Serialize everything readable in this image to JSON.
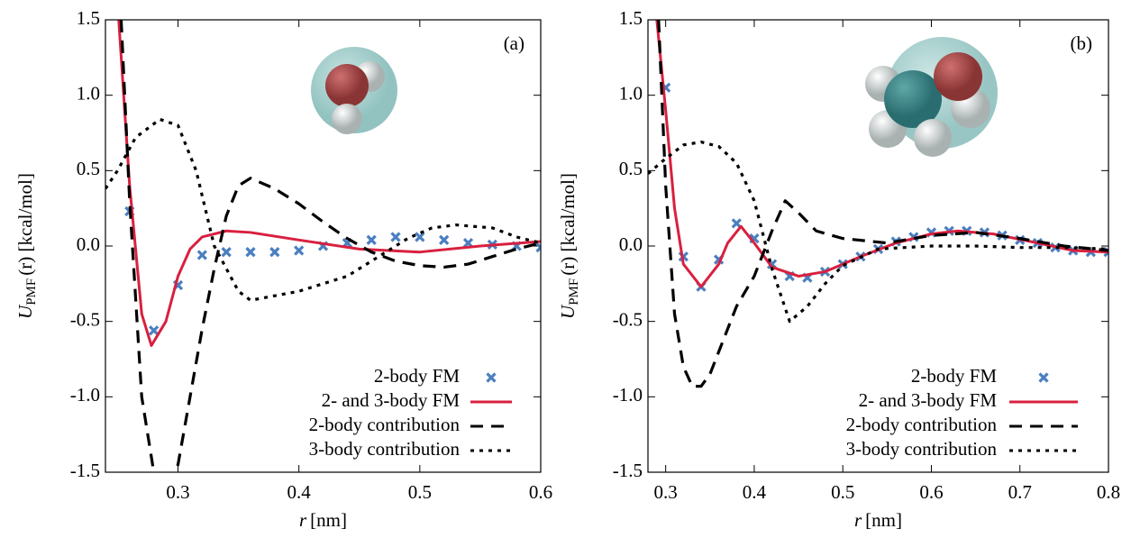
{
  "chart_data": [
    {
      "type": "line",
      "annotation": "(a)",
      "legend": "lower right",
      "xlabel": {
        "symbol": "r",
        "rest": "[nm]"
      },
      "ylabel": {
        "symbol": "U",
        "subscript": "PMF",
        "rest": "(r) [kcal/mol]"
      },
      "xlim": [
        0.24,
        0.6
      ],
      "ylim": [
        -1.5,
        1.5
      ],
      "xticks": [
        0.3,
        0.4,
        0.5,
        0.6
      ],
      "yticks": [
        -1.5,
        {
          "value": -1,
          "label": "-1.0"
        },
        -0.5,
        {
          "value": 0,
          "label": "0.0"
        },
        0.5,
        {
          "value": 1,
          "label": "1.0"
        },
        1.5
      ],
      "series": [
        {
          "name": "2-body FM",
          "color": "#4a7fc0",
          "style": "points",
          "x": [
            0.26,
            0.28,
            0.3,
            0.32,
            0.34,
            0.36,
            0.38,
            0.4,
            0.42,
            0.44,
            0.46,
            0.48,
            0.5,
            0.52,
            0.54,
            0.56,
            0.58,
            0.6
          ],
          "values": [
            0.23,
            -0.56,
            -0.26,
            -0.06,
            -0.04,
            -0.04,
            -0.04,
            -0.03,
            0.0,
            0.02,
            0.04,
            0.06,
            0.06,
            0.04,
            0.02,
            0.01,
            0.0,
            -0.01
          ]
        },
        {
          "name": "2- and 3-body FM",
          "color": "#d9203f",
          "style": "solid",
          "x": [
            0.251,
            0.26,
            0.27,
            0.278,
            0.29,
            0.3,
            0.31,
            0.32,
            0.34,
            0.36,
            0.4,
            0.45,
            0.5,
            0.55,
            0.6
          ],
          "values": [
            1.5,
            0.4,
            -0.45,
            -0.66,
            -0.5,
            -0.2,
            -0.02,
            0.06,
            0.1,
            0.09,
            0.04,
            -0.02,
            -0.04,
            0.0,
            0.03
          ]
        },
        {
          "name": "2-body contribution",
          "color": "#000000",
          "style": "dashed",
          "x": [
            0.253,
            0.26,
            0.27,
            0.28,
            0.29,
            0.3,
            0.31,
            0.32,
            0.33,
            0.34,
            0.35,
            0.36,
            0.38,
            0.4,
            0.42,
            0.44,
            0.46,
            0.48,
            0.5,
            0.52,
            0.54,
            0.56,
            0.58,
            0.6
          ],
          "values": [
            1.5,
            0.3,
            -1.0,
            -1.5,
            -1.6,
            -1.45,
            -1.0,
            -0.55,
            -0.15,
            0.2,
            0.4,
            0.45,
            0.38,
            0.28,
            0.16,
            0.05,
            -0.04,
            -0.1,
            -0.13,
            -0.14,
            -0.12,
            -0.07,
            -0.02,
            0.02
          ]
        },
        {
          "name": "3-body contribution",
          "color": "#000000",
          "style": "dotted",
          "x": [
            0.24,
            0.25,
            0.265,
            0.285,
            0.3,
            0.315,
            0.33,
            0.35,
            0.36,
            0.4,
            0.44,
            0.47,
            0.49,
            0.51,
            0.53,
            0.56,
            0.58,
            0.6
          ],
          "values": [
            0.38,
            0.5,
            0.72,
            0.84,
            0.8,
            0.5,
            0.0,
            -0.3,
            -0.36,
            -0.3,
            -0.2,
            -0.05,
            0.05,
            0.12,
            0.14,
            0.12,
            0.06,
            0.02
          ]
        }
      ]
    },
    {
      "type": "line",
      "annotation": "(b)",
      "legend": "lower right",
      "xlabel": {
        "symbol": "r",
        "rest": "[nm]"
      },
      "ylabel": {
        "symbol": "U",
        "subscript": "PMF",
        "rest": "(r) [kcal/mol]"
      },
      "xlim": [
        0.28,
        0.8
      ],
      "ylim": [
        -1.5,
        1.5
      ],
      "xticks": [
        0.3,
        0.4,
        0.5,
        0.6,
        0.7,
        0.8
      ],
      "yticks": [
        -1.5,
        {
          "value": -1,
          "label": "-1.0"
        },
        -0.5,
        {
          "value": 0,
          "label": "0.0"
        },
        0.5,
        {
          "value": 1,
          "label": "1.0"
        },
        1.5
      ],
      "series": [
        {
          "name": "2-body FM",
          "color": "#4a7fc0",
          "style": "points",
          "x": [
            0.3,
            0.32,
            0.34,
            0.36,
            0.38,
            0.4,
            0.42,
            0.44,
            0.46,
            0.48,
            0.5,
            0.52,
            0.54,
            0.56,
            0.58,
            0.6,
            0.62,
            0.64,
            0.66,
            0.68,
            0.7,
            0.72,
            0.74,
            0.76,
            0.78,
            0.8
          ],
          "values": [
            1.05,
            -0.07,
            -0.27,
            -0.09,
            0.15,
            0.05,
            -0.12,
            -0.2,
            -0.21,
            -0.17,
            -0.12,
            -0.07,
            -0.02,
            0.03,
            0.06,
            0.09,
            0.1,
            0.1,
            0.09,
            0.07,
            0.04,
            0.02,
            -0.01,
            -0.03,
            -0.04,
            -0.04
          ]
        },
        {
          "name": "2- and 3-body FM",
          "color": "#d9203f",
          "style": "solid",
          "x": [
            0.29,
            0.3,
            0.31,
            0.32,
            0.34,
            0.36,
            0.37,
            0.385,
            0.4,
            0.42,
            0.45,
            0.48,
            0.52,
            0.56,
            0.6,
            0.63,
            0.67,
            0.72,
            0.76,
            0.8
          ],
          "values": [
            1.5,
            0.9,
            0.25,
            -0.12,
            -0.27,
            -0.12,
            0.02,
            0.13,
            0.02,
            -0.14,
            -0.2,
            -0.17,
            -0.07,
            0.02,
            0.08,
            0.1,
            0.08,
            0.02,
            -0.03,
            -0.04
          ]
        },
        {
          "name": "2-body contribution",
          "color": "#000000",
          "style": "dashed",
          "x": [
            0.292,
            0.3,
            0.31,
            0.32,
            0.33,
            0.34,
            0.35,
            0.36,
            0.38,
            0.4,
            0.42,
            0.435,
            0.45,
            0.47,
            0.5,
            0.55,
            0.6,
            0.65,
            0.7,
            0.75,
            0.8
          ],
          "values": [
            1.5,
            0.4,
            -0.45,
            -0.8,
            -0.93,
            -0.93,
            -0.85,
            -0.7,
            -0.4,
            -0.2,
            0.1,
            0.3,
            0.22,
            0.1,
            0.05,
            0.02,
            0.07,
            0.09,
            0.05,
            0.0,
            -0.03
          ]
        },
        {
          "name": "3-body contribution",
          "color": "#000000",
          "style": "dotted",
          "x": [
            0.28,
            0.3,
            0.32,
            0.34,
            0.36,
            0.38,
            0.4,
            0.42,
            0.44,
            0.46,
            0.48,
            0.5,
            0.54,
            0.6,
            0.65,
            0.7,
            0.75,
            0.8
          ],
          "values": [
            0.48,
            0.58,
            0.67,
            0.69,
            0.66,
            0.55,
            0.3,
            -0.15,
            -0.5,
            -0.4,
            -0.25,
            -0.13,
            -0.02,
            0.0,
            0.0,
            -0.01,
            -0.01,
            -0.02
          ]
        }
      ]
    }
  ]
}
